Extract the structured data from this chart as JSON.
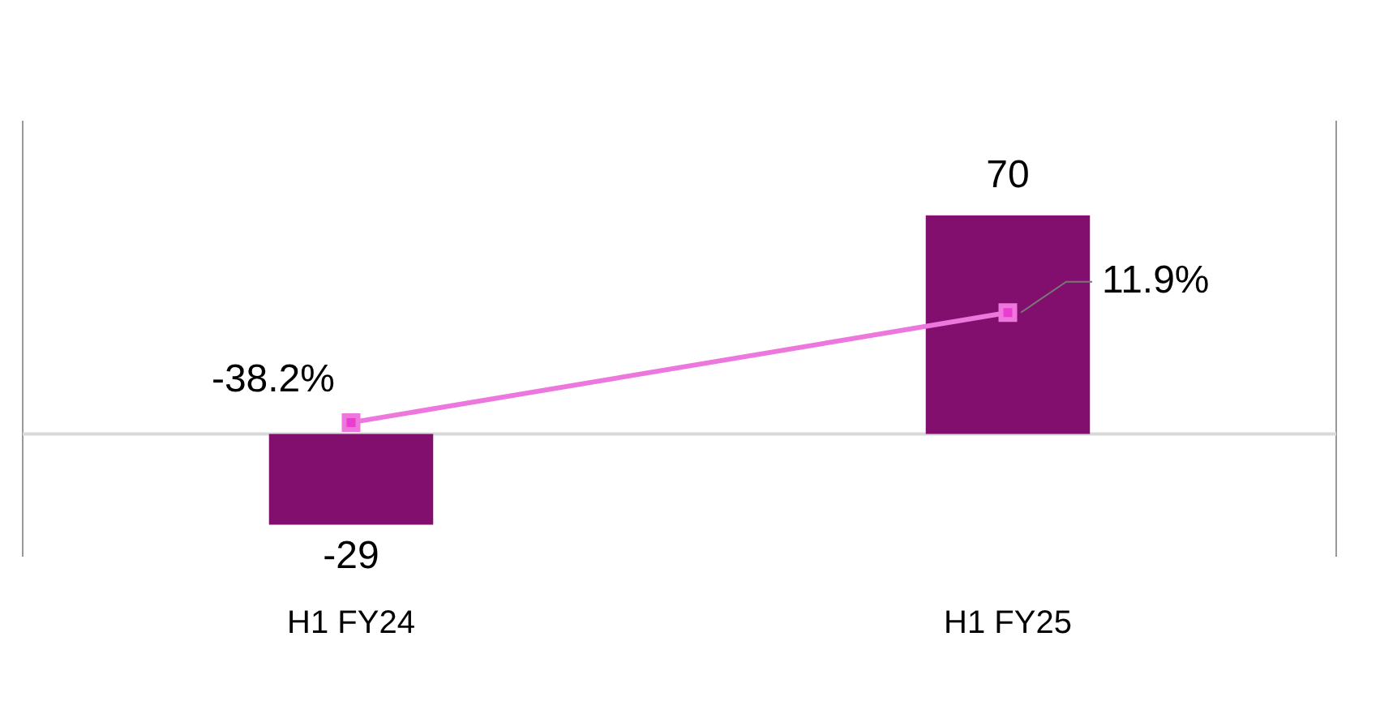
{
  "chart_data": {
    "type": "bar",
    "categories": [
      "H1 FY24",
      "H1 FY25"
    ],
    "series": [
      {
        "color": "#820f6e",
        "values": [
          -29,
          70
        ],
        "value_labels": [
          "-29",
          "70"
        ]
      },
      {
        "type": "line",
        "axis": "y2",
        "color": "#ee77dd",
        "values": [
          -38.2,
          11.9
        ],
        "value_labels": [
          "-38.2%",
          "11.9%"
        ]
      }
    ],
    "ylim": [
      -39,
      100
    ],
    "y2lim": [
      -99,
      99
    ],
    "tick_labels": "x",
    "marker": "square",
    "line_style": "solid",
    "grid": false,
    "legend": false
  }
}
